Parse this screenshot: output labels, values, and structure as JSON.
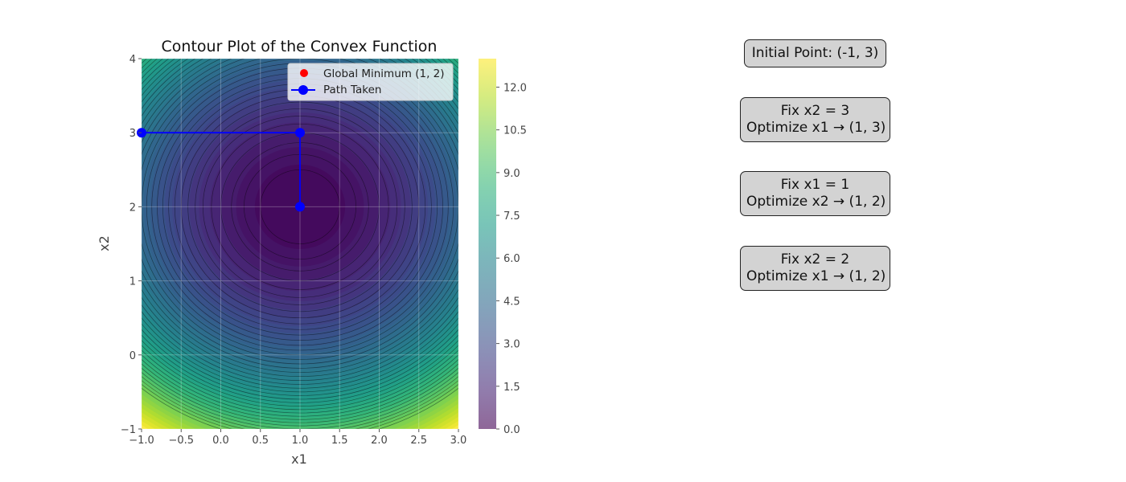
{
  "chart_data": {
    "type": "contour",
    "title": "Contour Plot of the Convex Function",
    "xlabel": "x1",
    "ylabel": "x2",
    "xlim": [
      -1,
      3
    ],
    "ylim": [
      -1,
      4
    ],
    "function_minimum": [
      1,
      2
    ],
    "xticks": [
      "−1.0",
      "−0.5",
      "0.0",
      "0.5",
      "1.0",
      "1.5",
      "2.0",
      "2.5",
      "3.0"
    ],
    "xtick_values": [
      -1,
      -0.5,
      0,
      0.5,
      1,
      1.5,
      2,
      2.5,
      3
    ],
    "yticks": [
      "−1",
      "0",
      "1",
      "2",
      "3",
      "4"
    ],
    "ytick_values": [
      -1,
      0,
      1,
      2,
      3,
      4
    ],
    "colorbar": {
      "range": [
        0,
        13
      ],
      "ticks": [
        "0.0",
        "1.5",
        "3.0",
        "4.5",
        "6.0",
        "7.5",
        "9.0",
        "10.5",
        "12.0"
      ],
      "tick_values": [
        0,
        1.5,
        3,
        4.5,
        6,
        7.5,
        9,
        10.5,
        12
      ],
      "colormap": "viridis",
      "alpha": 0.6
    },
    "contour_levels": [
      0.25,
      0.5,
      0.75,
      1.0,
      1.25,
      1.5,
      1.75,
      2.0,
      2.25,
      2.5,
      2.75,
      3.0,
      3.25,
      3.5,
      3.75,
      4.0,
      4.25,
      4.5,
      4.75,
      5.0,
      5.25,
      5.5,
      5.75,
      6.0,
      6.25,
      6.5,
      6.75,
      7.0,
      7.25,
      7.5,
      7.75,
      8.0,
      8.25,
      8.5,
      8.75,
      9.0,
      9.25,
      9.5,
      9.75,
      10.0
    ],
    "global_minimum": {
      "name": "Global Minimum (1, 2)",
      "x": 1,
      "y": 2,
      "color": "#ff0000"
    },
    "path": {
      "name": "Path Taken",
      "x": [
        -1,
        1,
        1
      ],
      "y": [
        3,
        3,
        2
      ],
      "color": "#0000ff"
    },
    "legend_position": "top-right",
    "grid": true
  },
  "steps": [
    {
      "line1": "Initial Point:  (-1, 3)",
      "line2": ""
    },
    {
      "line1": "Fix x2 = 3",
      "line2": "Optimize x1 → (1, 3)"
    },
    {
      "line1": "Fix x1 = 1",
      "line2": "Optimize x2 → (1, 2)"
    },
    {
      "line1": "Fix x2 = 2",
      "line2": "Optimize x1 → (1, 2)"
    }
  ]
}
